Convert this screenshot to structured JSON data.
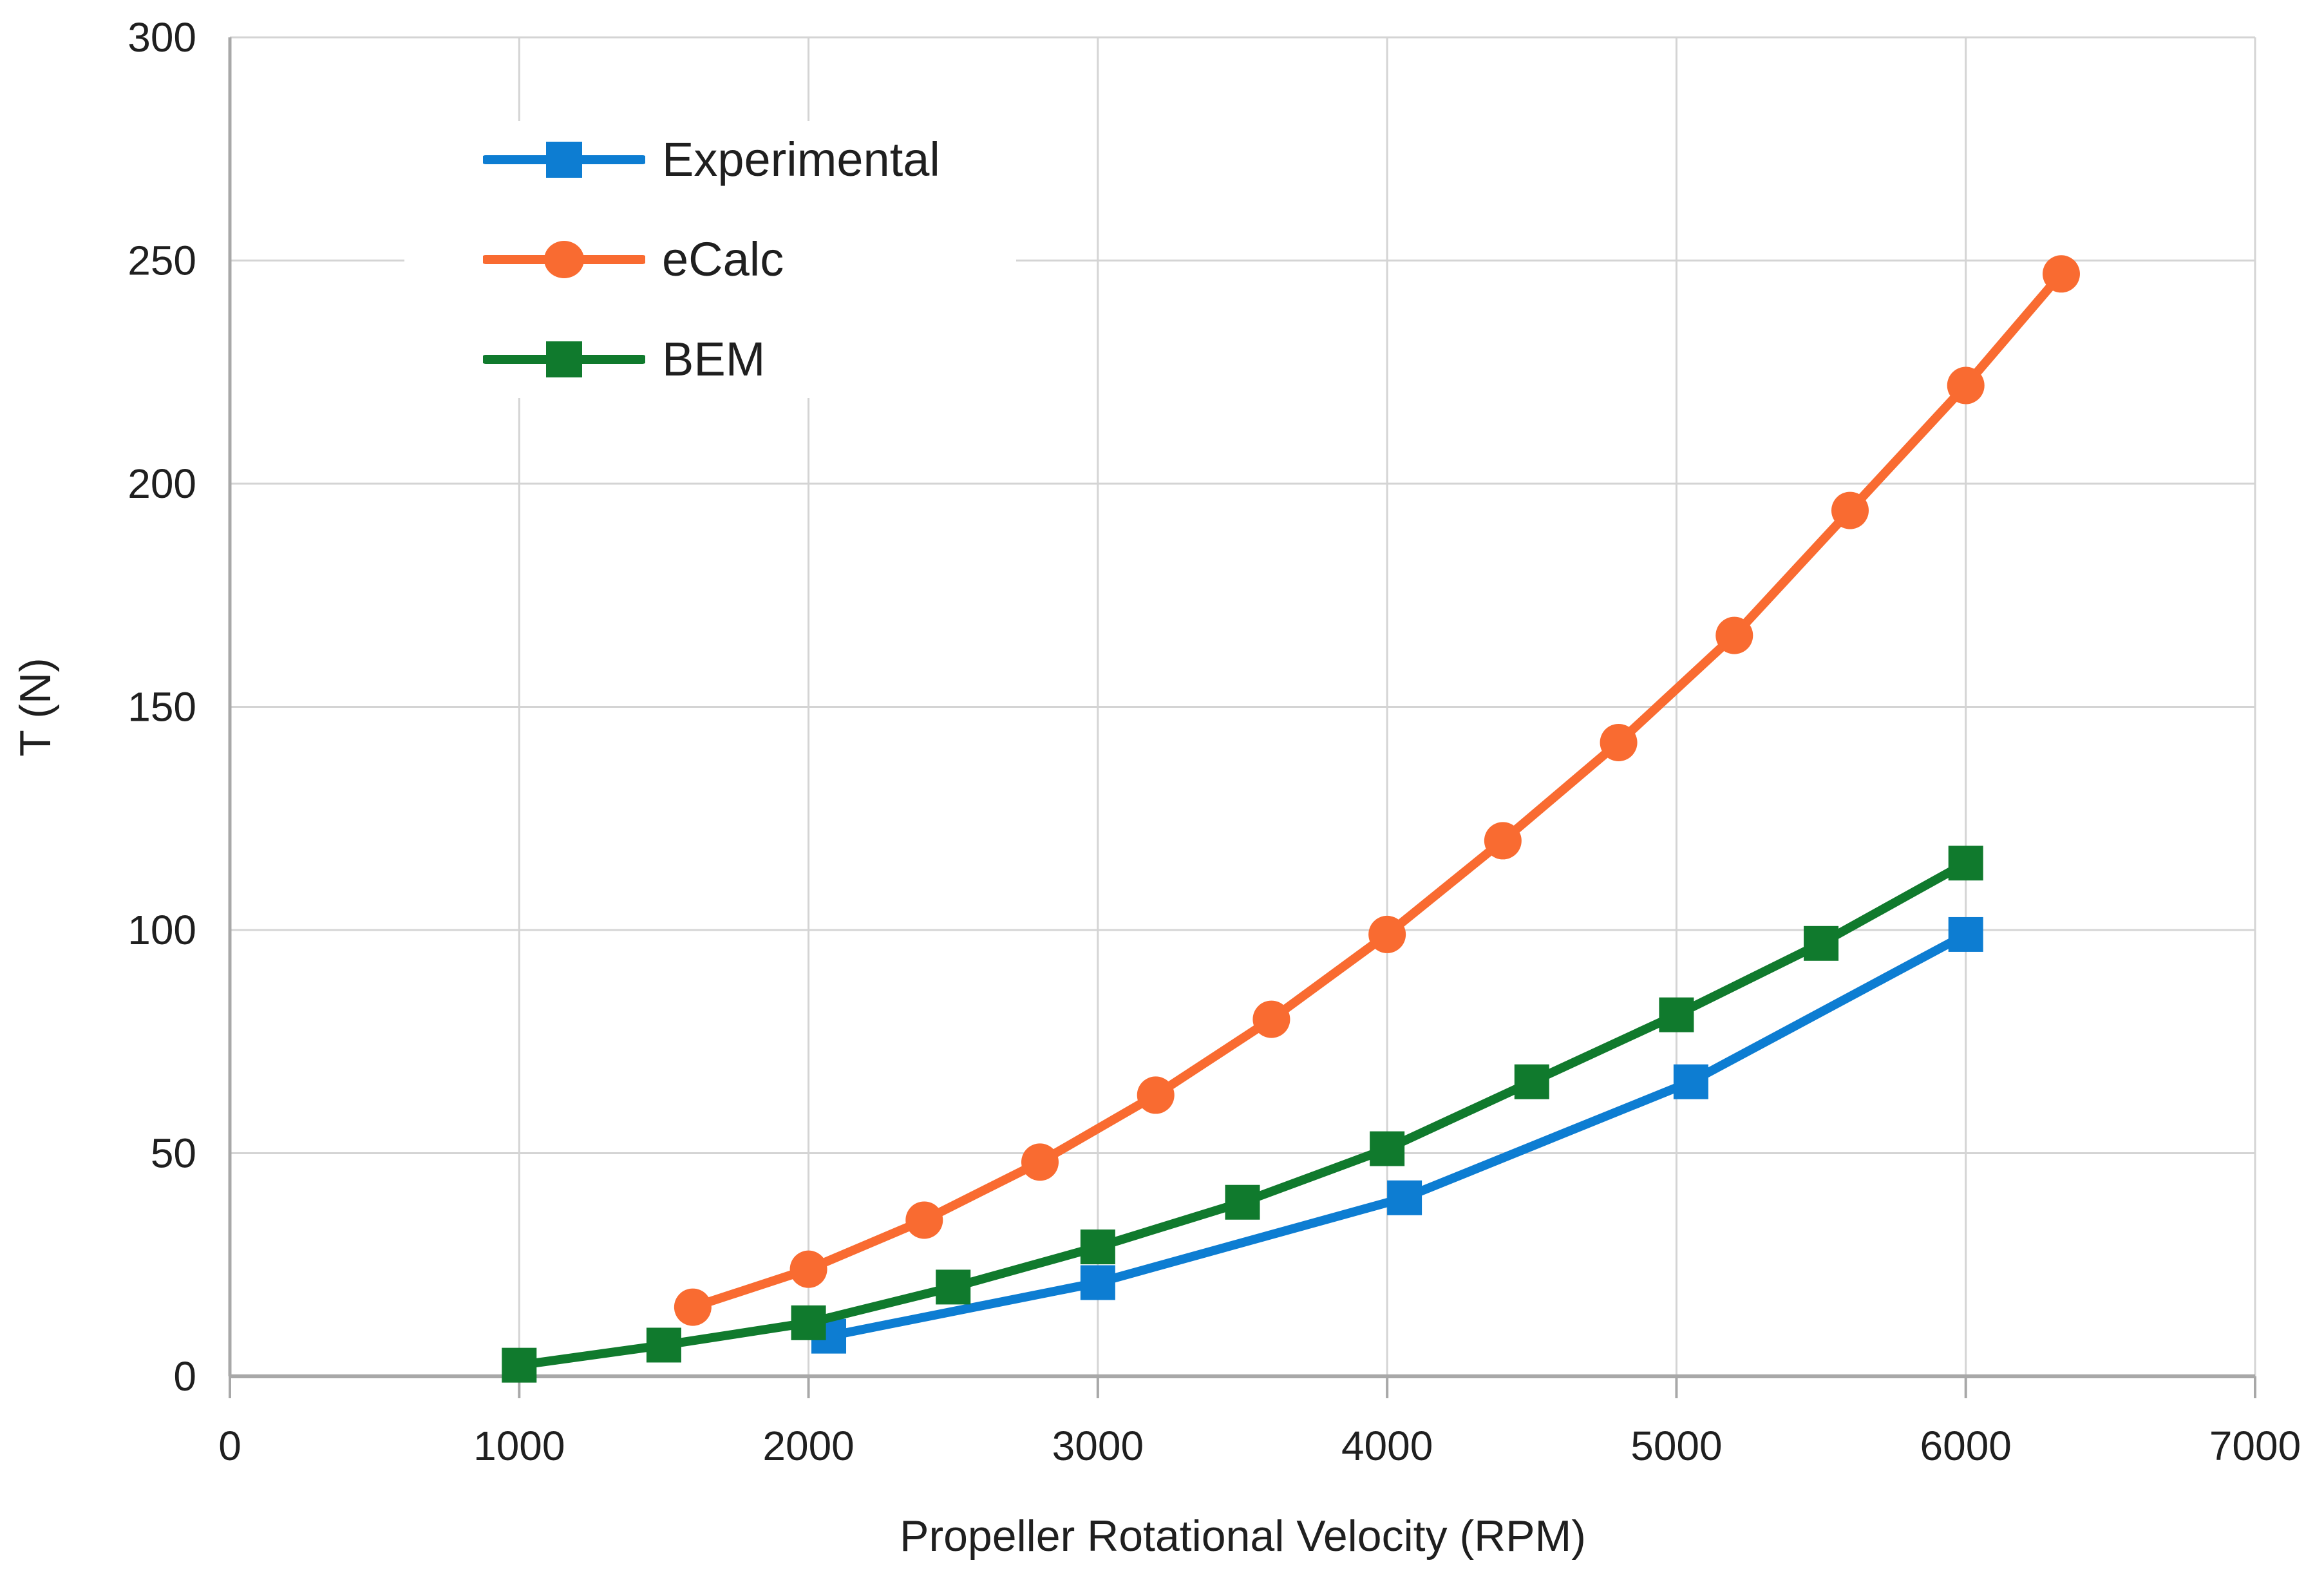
{
  "chart_data": {
    "type": "line",
    "title": "",
    "xlabel": "Propeller Rotational Velocity (RPM)",
    "ylabel": "T (N)",
    "x_range": [
      0,
      7000
    ],
    "y_range": [
      0,
      300
    ],
    "x_ticks": [
      0,
      1000,
      2000,
      3000,
      4000,
      5000,
      6000,
      7000
    ],
    "y_ticks": [
      0,
      50,
      100,
      150,
      200,
      250,
      300
    ],
    "grid": true,
    "legend_position": "top-left-inside",
    "axis_color": "#a8a8a8",
    "grid_color": "#d4d4d4",
    "text_color": "#1f1f1f",
    "series": [
      {
        "name": "Experimental",
        "color": "#0d7dd2",
        "marker": "square",
        "points": [
          [
            2070,
            9
          ],
          [
            3000,
            21
          ],
          [
            4060,
            40
          ],
          [
            5050,
            66
          ],
          [
            6000,
            99
          ]
        ]
      },
      {
        "name": "eCalc",
        "color": "#f96b31",
        "marker": "circle",
        "points": [
          [
            1600,
            15.5
          ],
          [
            2000,
            24
          ],
          [
            2400,
            35
          ],
          [
            2800,
            48
          ],
          [
            3200,
            63
          ],
          [
            3600,
            80
          ],
          [
            4000,
            99
          ],
          [
            4400,
            120
          ],
          [
            4800,
            142
          ],
          [
            5200,
            166
          ],
          [
            5600,
            194
          ],
          [
            6000,
            222
          ],
          [
            6330,
            247
          ]
        ]
      },
      {
        "name": "BEM",
        "color": "#107a2d",
        "marker": "square",
        "points": [
          [
            1000,
            2.5
          ],
          [
            1500,
            7
          ],
          [
            2000,
            12
          ],
          [
            2500,
            20
          ],
          [
            3000,
            29
          ],
          [
            3500,
            39
          ],
          [
            4000,
            51
          ],
          [
            4500,
            66
          ],
          [
            5000,
            81
          ],
          [
            5500,
            97
          ],
          [
            6000,
            115
          ]
        ]
      }
    ]
  }
}
